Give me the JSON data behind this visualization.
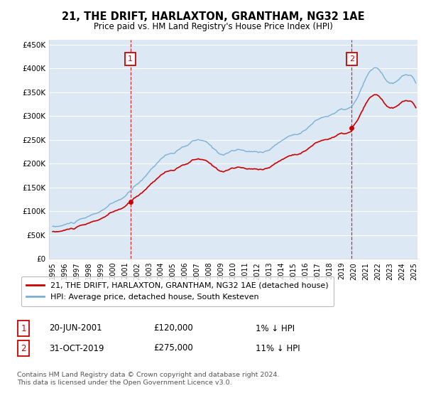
{
  "title": "21, THE DRIFT, HARLAXTON, GRANTHAM, NG32 1AE",
  "subtitle": "Price paid vs. HM Land Registry's House Price Index (HPI)",
  "legend_line1": "21, THE DRIFT, HARLAXTON, GRANTHAM, NG32 1AE (detached house)",
  "legend_line2": "HPI: Average price, detached house, South Kesteven",
  "annotation1_label": "1",
  "annotation1_date": "20-JUN-2001",
  "annotation1_price": "£120,000",
  "annotation1_hpi": "1% ↓ HPI",
  "annotation2_label": "2",
  "annotation2_date": "31-OCT-2019",
  "annotation2_price": "£275,000",
  "annotation2_hpi": "11% ↓ HPI",
  "footnote": "Contains HM Land Registry data © Crown copyright and database right 2024.\nThis data is licensed under the Open Government Licence v3.0.",
  "hpi_color": "#7bafd4",
  "price_color": "#cc0000",
  "annotation_color": "#cc0000",
  "background_color": "#ffffff",
  "plot_bg_color": "#dce9f5",
  "grid_color": "#ffffff",
  "ylim": [
    0,
    460000
  ],
  "yticks": [
    0,
    50000,
    100000,
    150000,
    200000,
    250000,
    300000,
    350000,
    400000,
    450000
  ],
  "xlim_start": 1994.7,
  "xlim_end": 2025.3,
  "sale1_x": 2001.46,
  "sale1_y": 120000,
  "sale2_x": 2019.84,
  "sale2_y": 275000
}
